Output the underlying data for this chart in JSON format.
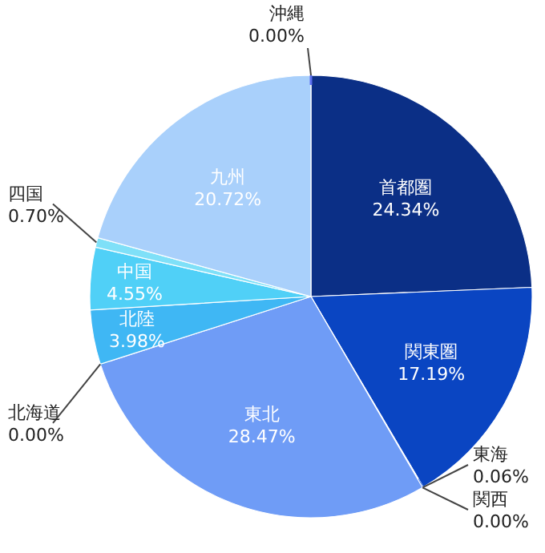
{
  "chart_data": {
    "type": "pie",
    "categories": [
      "首都圏",
      "関東圏",
      "東海",
      "関西",
      "東北",
      "北海道",
      "北陸",
      "中国",
      "四国",
      "九州",
      "沖縄"
    ],
    "values": [
      24.34,
      17.19,
      0.06,
      0.0,
      28.47,
      0.0,
      3.98,
      4.55,
      0.7,
      20.72,
      0.0
    ],
    "value_labels": [
      "24.34%",
      "17.19%",
      "0.06%",
      "0.00%",
      "28.47%",
      "0.00%",
      "3.98%",
      "4.55%",
      "0.70%",
      "20.72%",
      "0.00%"
    ],
    "colors": [
      "#0b2f86",
      "#0a45c2",
      "#2f6ae0",
      "#3f78ea",
      "#6f9cf6",
      "#4aa6f2",
      "#3fb7f4",
      "#50d0f7",
      "#7fe0f8",
      "#a9d0fb",
      "#5a6df0"
    ]
  }
}
